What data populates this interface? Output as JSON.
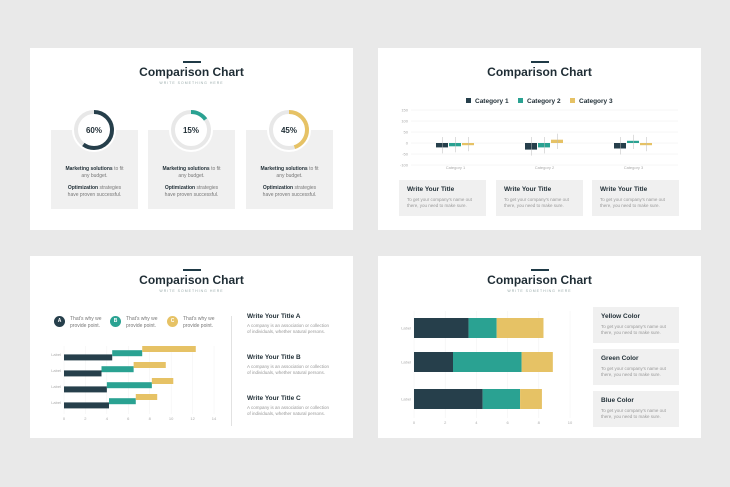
{
  "colors": {
    "navy": "#263f4b",
    "teal": "#2aa292",
    "gold": "#e6c265",
    "grey": "#f0f0f0"
  },
  "slide1": {
    "title": "Comparison Chart",
    "subtitle": "WRITE SOMETHING HERE",
    "donuts": [
      {
        "percent_label": "60%",
        "value": 60,
        "color": "#263f4b",
        "line1_bold": "Marketing solutions",
        "line1_rest": " to fit",
        "line2": "any budget.",
        "line3_bold": "Optimization",
        "line3_rest": " strategies",
        "line4": "have proven successful."
      },
      {
        "percent_label": "15%",
        "value": 15,
        "color": "#2aa292",
        "line1_bold": "Marketing solutions",
        "line1_rest": " to fit",
        "line2": "any budget.",
        "line3_bold": "Optimization",
        "line3_rest": " strategies",
        "line4": "have proven successful."
      },
      {
        "percent_label": "45%",
        "value": 45,
        "color": "#e6c265",
        "line1_bold": "Marketing solutions",
        "line1_rest": " to fit",
        "line2": "any budget.",
        "line3_bold": "Optimization",
        "line3_rest": " strategies",
        "line4": "have proven successful."
      }
    ]
  },
  "slide2": {
    "title": "Comparison Chart",
    "subtitle": "WRITE SOMETHING HERE",
    "legend": [
      "Category 1",
      "Category 2",
      "Category 3"
    ],
    "cards": [
      {
        "title": "Write Your Title",
        "text1": "To get your company's name out",
        "text2": "there, you need to make sure."
      },
      {
        "title": "Write Your Title",
        "text1": "To get your company's name out",
        "text2": "there, you need to make sure."
      },
      {
        "title": "Write Your Title",
        "text1": "To get your company's name out",
        "text2": "there, you need to make sure."
      }
    ]
  },
  "slide3": {
    "title": "Comparison Chart",
    "subtitle": "WRITE SOMETHING HERE",
    "legend": [
      {
        "letter": "A",
        "text1": "That's why we",
        "text2": "provide point.",
        "color": "#263f4b"
      },
      {
        "letter": "B",
        "text1": "That's why we",
        "text2": "provide point.",
        "color": "#2aa292"
      },
      {
        "letter": "C",
        "text1": "That's why we",
        "text2": "provide point.",
        "color": "#e6c265"
      }
    ],
    "items": [
      {
        "title": "Write Your Title A",
        "text1": "A company is an association or collection",
        "text2": "of individuals, whether natural persons."
      },
      {
        "title": "Write Your Title B",
        "text1": "A company is an association or collection",
        "text2": "of individuals, whether natural persons."
      },
      {
        "title": "Write Your Title C",
        "text1": "A company is an association or collection",
        "text2": "of individuals, whether natural persons."
      }
    ]
  },
  "slide4": {
    "title": "Comparison Chart",
    "subtitle": "WRITE SOMETHING HERE",
    "cards": [
      {
        "title": "Yellow Color",
        "text1": "To get your company's name out",
        "text2": "there, you need to make sure."
      },
      {
        "title": "Green Color",
        "text1": "To get your company's name out",
        "text2": "there, you need to make sure."
      },
      {
        "title": "Blue Color",
        "text1": "To get your company's name out",
        "text2": "there, you need to make sure."
      }
    ]
  },
  "chart_data": [
    {
      "type": "bar",
      "chart_id": "slide2-grouped",
      "categories": [
        "Category 1",
        "Category 2",
        "Category 3"
      ],
      "series": [
        {
          "name": "Category 1",
          "values": [
            -20,
            -30,
            -25
          ]
        },
        {
          "name": "Category 2",
          "values": [
            -15,
            -20,
            10
          ]
        },
        {
          "name": "Category 3",
          "values": [
            -10,
            15,
            -10
          ]
        }
      ],
      "ylim": [
        -100,
        150
      ],
      "yticks": [
        "150",
        "100",
        "50",
        "0",
        "-50",
        "-100"
      ]
    },
    {
      "type": "bar",
      "chart_id": "slide3-horizontal",
      "orientation": "horizontal",
      "categories": [
        "Label",
        "Label",
        "Label",
        "Label"
      ],
      "series": [
        {
          "name": "A",
          "values": [
            4.5,
            3.5,
            4,
            4.2
          ]
        },
        {
          "name": "B",
          "values": [
            2.8,
            3,
            4.2,
            2.5
          ]
        },
        {
          "name": "C",
          "values": [
            5,
            3,
            2,
            2
          ]
        }
      ],
      "xlim": [
        0,
        14
      ],
      "xticks": [
        "0",
        "2",
        "4",
        "6",
        "8",
        "10",
        "12",
        "14"
      ]
    },
    {
      "type": "bar",
      "chart_id": "slide4-stacked",
      "orientation": "horizontal",
      "stacked": true,
      "categories": [
        "Label",
        "Label",
        "Label"
      ],
      "series": [
        {
          "name": "Blue Color",
          "values": [
            3.5,
            2.5,
            4.4
          ]
        },
        {
          "name": "Green Color",
          "values": [
            1.8,
            4.4,
            2.4
          ]
        },
        {
          "name": "Yellow Color",
          "values": [
            3,
            2,
            1.4
          ]
        }
      ],
      "xlim": [
        0,
        10
      ],
      "xticks": [
        "0",
        "2",
        "4",
        "6",
        "8",
        "10"
      ]
    }
  ]
}
